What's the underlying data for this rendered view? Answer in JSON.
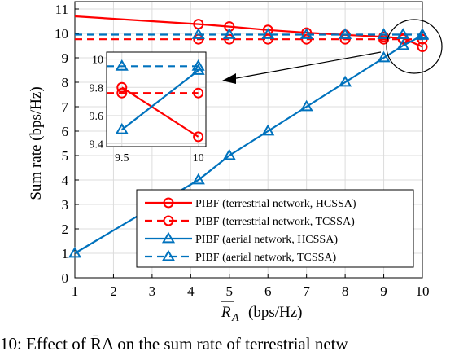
{
  "chart_data": {
    "type": "line",
    "xlabel_main": "R",
    "xlabel_sub": "A",
    "xlabel_unit": "(bps/Hz)",
    "ylabel": "Sum rate (bps/Hz)",
    "xlim": [
      1,
      10
    ],
    "ylim": [
      0,
      11.3
    ],
    "x_ticks": [
      "1",
      "2",
      "3",
      "4",
      "5",
      "6",
      "7",
      "8",
      "9",
      "10"
    ],
    "y_ticks": [
      "0",
      "1",
      "2",
      "3",
      "4",
      "5",
      "6",
      "7",
      "8",
      "9",
      "10",
      "11"
    ],
    "grid": true,
    "legend_position": "bottom-right",
    "series": [
      {
        "name": "PIBF (terrestrial network, HCSSA)",
        "color": "#ff0000",
        "dash": false,
        "x": [
          1,
          4.2,
          5,
          6,
          7,
          8,
          9,
          9.5,
          10
        ],
        "y": [
          10.7,
          10.38,
          10.28,
          10.14,
          10.03,
          9.94,
          9.86,
          9.8,
          9.45
        ]
      },
      {
        "name": "PIBF (terrestrial network, TCSSA)",
        "color": "#ff0000",
        "dash": true,
        "x": [
          1,
          4.2,
          5,
          6,
          7,
          8,
          9,
          9.5,
          10
        ],
        "y": [
          9.76,
          9.76,
          9.76,
          9.76,
          9.76,
          9.76,
          9.76,
          9.76,
          9.76
        ]
      },
      {
        "name": "PIBF (aerial network, HCSSA)",
        "color": "#0072bd",
        "dash": false,
        "x": [
          1,
          4.2,
          5,
          6,
          7,
          8,
          9,
          9.5,
          10
        ],
        "y": [
          1.0,
          4.0,
          5.0,
          6.0,
          7.0,
          8.0,
          9.0,
          9.5,
          9.92
        ]
      },
      {
        "name": "PIBF (aerial network, TCSSA)",
        "color": "#0072bd",
        "dash": true,
        "x": [
          1,
          4.2,
          5,
          6,
          7,
          8,
          9,
          9.5,
          10
        ],
        "y": [
          9.95,
          9.95,
          9.95,
          9.95,
          9.95,
          9.95,
          9.95,
          9.95,
          9.95
        ]
      }
    ],
    "inset": {
      "xlim": [
        9.4,
        10.05
      ],
      "ylim": [
        9.38,
        10.05
      ],
      "x_ticks": [
        {
          "v": 9.5,
          "label": "9.5"
        },
        {
          "v": 10,
          "label": "10"
        }
      ],
      "y_ticks": [
        {
          "v": 9.4,
          "label": "9.4"
        },
        {
          "v": 9.6,
          "label": "9.6"
        },
        {
          "v": 9.8,
          "label": "9.8"
        },
        {
          "v": 10,
          "label": "10"
        }
      ]
    }
  },
  "caption": "10: Effect of R̄A on the sum rate of terrestrial netw"
}
